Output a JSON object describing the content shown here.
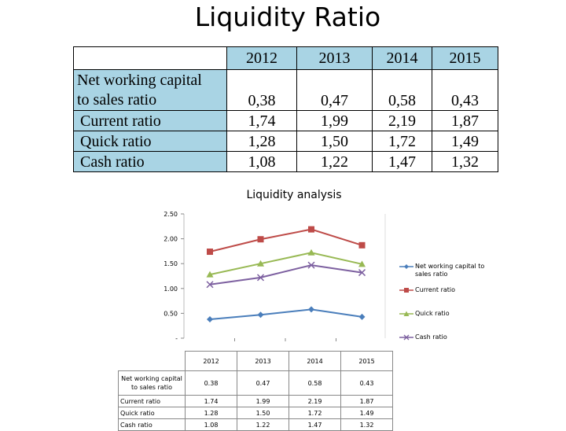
{
  "page": {
    "title": "Liquidity Ratio"
  },
  "table": {
    "years": [
      "2012",
      "2013",
      "2014",
      "2015"
    ],
    "rows": [
      {
        "label": "Net working capital\nto sales ratio",
        "values": [
          "0,38",
          "0,47",
          "0,58",
          "0,43"
        ]
      },
      {
        "label": "Current ratio",
        "values": [
          "1,74",
          "1,99",
          "2,19",
          "1,87"
        ]
      },
      {
        "label": "Quick ratio",
        "values": [
          "1,28",
          "1,50",
          "1,72",
          "1,49"
        ]
      },
      {
        "label": "Cash ratio",
        "values": [
          "1,08",
          "1,22",
          "1,47",
          "1,32"
        ]
      }
    ]
  },
  "chart_data": {
    "type": "line",
    "title": "Liquidity analysis",
    "categories": [
      "2012",
      "2013",
      "2014",
      "2015"
    ],
    "ylim": [
      0,
      2.5
    ],
    "yticks": [
      "-",
      "0.50",
      "1.00",
      "1.50",
      "2.00",
      "2.50"
    ],
    "grid": false,
    "legend_position": "right",
    "series": [
      {
        "name": "Net working capital to sales ratio",
        "values": [
          0.38,
          0.47,
          0.58,
          0.43
        ],
        "display": [
          "0.38",
          "0.47",
          "0.58",
          "0.43"
        ],
        "color": "#4a7ebb",
        "marker": "diamond"
      },
      {
        "name": "Current ratio",
        "values": [
          1.74,
          1.99,
          2.19,
          1.87
        ],
        "display": [
          "1.74",
          "1.99",
          "2.19",
          "1.87"
        ],
        "color": "#be4b48",
        "marker": "square"
      },
      {
        "name": "Quick ratio",
        "values": [
          1.28,
          1.5,
          1.72,
          1.49
        ],
        "display": [
          "1.28",
          "1.50",
          "1.72",
          "1.49"
        ],
        "color": "#98b954",
        "marker": "triangle"
      },
      {
        "name": "Cash ratio",
        "values": [
          1.08,
          1.22,
          1.47,
          1.32
        ],
        "display": [
          "1.08",
          "1.22",
          "1.47",
          "1.32"
        ],
        "color": "#7d60a0",
        "marker": "x"
      }
    ]
  }
}
